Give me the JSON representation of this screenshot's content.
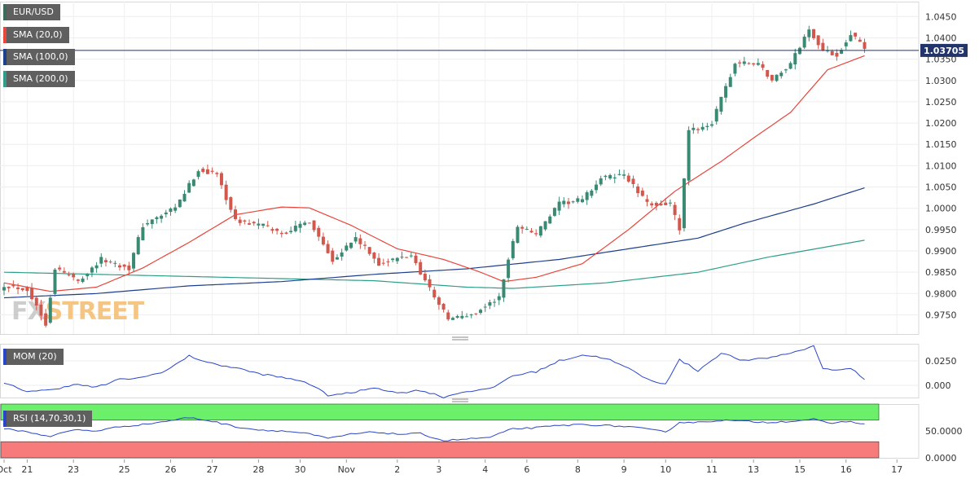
{
  "legend": {
    "symbol": "EUR/USD",
    "sma20": "SMA (20,0)",
    "sma100": "SMA (100,0)",
    "sma200": "SMA (200,0)",
    "mom": "MOM (20)",
    "rsi": "RSI (14,70,30,1)"
  },
  "watermark": {
    "part1": "FX",
    "part2": "STREET"
  },
  "colors": {
    "candle_up": "#3a8a73",
    "candle_down": "#d2584e",
    "sma20": "#e8463c",
    "sma100": "#1e3f8a",
    "sma200": "#2e9e8a",
    "mom_line": "#2a46c8",
    "rsi_line": "#2a46c8",
    "rsi_overbought": "#6cf06c",
    "rsi_oversold": "#f87b7b",
    "price_line": "#22356b"
  },
  "chart_data": {
    "type": "candlestick",
    "current_price": {
      "value": 1.03705,
      "label": "1.03705"
    },
    "price_axis": {
      "ylim": [
        0.9705,
        1.0485
      ],
      "ticks": [
        "0.9750",
        "0.9800",
        "0.9850",
        "0.9900",
        "0.9950",
        "1.0000",
        "1.0050",
        "1.0100",
        "1.0150",
        "1.0200",
        "1.0250",
        "1.0300",
        "1.0350",
        "1.0400",
        "1.0450"
      ]
    },
    "x_axis": {
      "count": 187,
      "labels": [
        {
          "i": 0,
          "label": "Oct"
        },
        {
          "i": 5,
          "label": "21"
        },
        {
          "i": 15,
          "label": "23"
        },
        {
          "i": 26,
          "label": "25"
        },
        {
          "i": 36,
          "label": "26"
        },
        {
          "i": 45,
          "label": "27"
        },
        {
          "i": 55,
          "label": "28"
        },
        {
          "i": 64,
          "label": "30"
        },
        {
          "i": 74,
          "label": "Nov"
        },
        {
          "i": 85,
          "label": "2"
        },
        {
          "i": 94,
          "label": "3"
        },
        {
          "i": 104,
          "label": "4"
        },
        {
          "i": 113,
          "label": "6"
        },
        {
          "i": 124,
          "label": "8"
        },
        {
          "i": 134,
          "label": "9"
        },
        {
          "i": 143,
          "label": "10"
        },
        {
          "i": 153,
          "label": "11"
        },
        {
          "i": 162,
          "label": "13"
        },
        {
          "i": 172,
          "label": "15"
        },
        {
          "i": 182,
          "label": "16"
        },
        {
          "i": 193,
          "label": "17"
        }
      ]
    },
    "price_anchors": [
      {
        "i": 0,
        "p": 0.982
      },
      {
        "i": 5,
        "p": 0.981
      },
      {
        "i": 9,
        "p": 0.973
      },
      {
        "i": 11,
        "p": 0.986
      },
      {
        "i": 16,
        "p": 0.983
      },
      {
        "i": 21,
        "p": 0.988
      },
      {
        "i": 27,
        "p": 0.986
      },
      {
        "i": 30,
        "p": 0.996
      },
      {
        "i": 37,
        "p": 1.0
      },
      {
        "i": 42,
        "p": 1.009
      },
      {
        "i": 46,
        "p": 1.008
      },
      {
        "i": 50,
        "p": 0.997
      },
      {
        "i": 56,
        "p": 0.996
      },
      {
        "i": 60,
        "p": 0.994
      },
      {
        "i": 66,
        "p": 0.997
      },
      {
        "i": 71,
        "p": 0.988
      },
      {
        "i": 76,
        "p": 0.993
      },
      {
        "i": 81,
        "p": 0.987
      },
      {
        "i": 88,
        "p": 0.989
      },
      {
        "i": 91,
        "p": 0.983
      },
      {
        "i": 96,
        "p": 0.974
      },
      {
        "i": 101,
        "p": 0.975
      },
      {
        "i": 107,
        "p": 0.979
      },
      {
        "i": 109,
        "p": 0.988
      },
      {
        "i": 111,
        "p": 0.996
      },
      {
        "i": 115,
        "p": 0.994
      },
      {
        "i": 120,
        "p": 1.001
      },
      {
        "i": 125,
        "p": 1.002
      },
      {
        "i": 129,
        "p": 1.007
      },
      {
        "i": 134,
        "p": 1.008
      },
      {
        "i": 139,
        "p": 1.001
      },
      {
        "i": 144,
        "p": 1.001
      },
      {
        "i": 146,
        "p": 0.995
      },
      {
        "i": 148,
        "p": 1.018
      },
      {
        "i": 153,
        "p": 1.02
      },
      {
        "i": 158,
        "p": 1.034
      },
      {
        "i": 163,
        "p": 1.034
      },
      {
        "i": 166,
        "p": 1.03
      },
      {
        "i": 170,
        "p": 1.034
      },
      {
        "i": 174,
        "p": 1.042
      },
      {
        "i": 177,
        "p": 1.037
      },
      {
        "i": 180,
        "p": 1.036
      },
      {
        "i": 183,
        "p": 1.041
      },
      {
        "i": 186,
        "p": 1.0375
      }
    ],
    "sma20_anchors": [
      {
        "i": 0,
        "p": 0.9825
      },
      {
        "i": 10,
        "p": 0.9805
      },
      {
        "i": 20,
        "p": 0.9815
      },
      {
        "i": 30,
        "p": 0.986
      },
      {
        "i": 40,
        "p": 0.992
      },
      {
        "i": 50,
        "p": 0.9985
      },
      {
        "i": 60,
        "p": 1.0003
      },
      {
        "i": 66,
        "p": 1.0001
      },
      {
        "i": 75,
        "p": 0.996
      },
      {
        "i": 85,
        "p": 0.9905
      },
      {
        "i": 95,
        "p": 0.988
      },
      {
        "i": 103,
        "p": 0.985
      },
      {
        "i": 108,
        "p": 0.9828
      },
      {
        "i": 115,
        "p": 0.9838
      },
      {
        "i": 125,
        "p": 0.987
      },
      {
        "i": 135,
        "p": 0.995
      },
      {
        "i": 145,
        "p": 1.004
      },
      {
        "i": 155,
        "p": 1.011
      },
      {
        "i": 162,
        "p": 1.0165
      },
      {
        "i": 170,
        "p": 1.0225
      },
      {
        "i": 178,
        "p": 1.0325
      },
      {
        "i": 186,
        "p": 1.0358
      }
    ],
    "sma100_anchors": [
      {
        "i": 0,
        "p": 0.979
      },
      {
        "i": 20,
        "p": 0.98
      },
      {
        "i": 40,
        "p": 0.9818
      },
      {
        "i": 60,
        "p": 0.9828
      },
      {
        "i": 80,
        "p": 0.9845
      },
      {
        "i": 100,
        "p": 0.9858
      },
      {
        "i": 120,
        "p": 0.988
      },
      {
        "i": 135,
        "p": 0.9905
      },
      {
        "i": 150,
        "p": 0.993
      },
      {
        "i": 160,
        "p": 0.9965
      },
      {
        "i": 175,
        "p": 1.001
      },
      {
        "i": 186,
        "p": 1.0048
      }
    ],
    "sma200_anchors": [
      {
        "i": 0,
        "p": 0.985
      },
      {
        "i": 40,
        "p": 0.984
      },
      {
        "i": 80,
        "p": 0.983
      },
      {
        "i": 100,
        "p": 0.9815
      },
      {
        "i": 110,
        "p": 0.9812
      },
      {
        "i": 130,
        "p": 0.9825
      },
      {
        "i": 150,
        "p": 0.985
      },
      {
        "i": 165,
        "p": 0.9885
      },
      {
        "i": 186,
        "p": 0.9925
      }
    ],
    "mom": {
      "ylim": [
        -0.0125,
        0.0425
      ],
      "ticks": [
        "0.000",
        "0.0250"
      ],
      "anchors": [
        {
          "i": 0,
          "v": 0.002
        },
        {
          "i": 5,
          "v": -0.006
        },
        {
          "i": 10,
          "v": -0.005
        },
        {
          "i": 15,
          "v": 0.001
        },
        {
          "i": 20,
          "v": -0.002
        },
        {
          "i": 25,
          "v": 0.006
        },
        {
          "i": 30,
          "v": 0.008
        },
        {
          "i": 35,
          "v": 0.015
        },
        {
          "i": 40,
          "v": 0.03
        },
        {
          "i": 45,
          "v": 0.022
        },
        {
          "i": 50,
          "v": 0.018
        },
        {
          "i": 55,
          "v": 0.012
        },
        {
          "i": 60,
          "v": 0.008
        },
        {
          "i": 65,
          "v": 0.004
        },
        {
          "i": 70,
          "v": -0.01
        },
        {
          "i": 75,
          "v": -0.008
        },
        {
          "i": 80,
          "v": -0.002
        },
        {
          "i": 85,
          "v": -0.008
        },
        {
          "i": 90,
          "v": -0.005
        },
        {
          "i": 95,
          "v": -0.012
        },
        {
          "i": 100,
          "v": -0.006
        },
        {
          "i": 105,
          "v": -0.004
        },
        {
          "i": 110,
          "v": 0.01
        },
        {
          "i": 115,
          "v": 0.014
        },
        {
          "i": 120,
          "v": 0.025
        },
        {
          "i": 125,
          "v": 0.031
        },
        {
          "i": 130,
          "v": 0.028
        },
        {
          "i": 135,
          "v": 0.017
        },
        {
          "i": 140,
          "v": 0.004
        },
        {
          "i": 143,
          "v": 0.002
        },
        {
          "i": 146,
          "v": 0.026
        },
        {
          "i": 150,
          "v": 0.015
        },
        {
          "i": 155,
          "v": 0.033
        },
        {
          "i": 160,
          "v": 0.025
        },
        {
          "i": 165,
          "v": 0.028
        },
        {
          "i": 170,
          "v": 0.033
        },
        {
          "i": 175,
          "v": 0.04
        },
        {
          "i": 177,
          "v": 0.018
        },
        {
          "i": 180,
          "v": 0.015
        },
        {
          "i": 183,
          "v": 0.018
        },
        {
          "i": 186,
          "v": 0.005
        }
      ]
    },
    "rsi": {
      "ylim": [
        0,
        100
      ],
      "ticks": [
        "0.0000",
        "50.0000"
      ],
      "overbought": 70,
      "oversold": 30,
      "anchors": [
        {
          "i": 0,
          "v": 55
        },
        {
          "i": 5,
          "v": 48
        },
        {
          "i": 10,
          "v": 40
        },
        {
          "i": 15,
          "v": 52
        },
        {
          "i": 20,
          "v": 50
        },
        {
          "i": 25,
          "v": 58
        },
        {
          "i": 30,
          "v": 62
        },
        {
          "i": 35,
          "v": 68
        },
        {
          "i": 40,
          "v": 75
        },
        {
          "i": 45,
          "v": 68
        },
        {
          "i": 50,
          "v": 58
        },
        {
          "i": 55,
          "v": 52
        },
        {
          "i": 60,
          "v": 50
        },
        {
          "i": 65,
          "v": 46
        },
        {
          "i": 70,
          "v": 36
        },
        {
          "i": 75,
          "v": 44
        },
        {
          "i": 80,
          "v": 48
        },
        {
          "i": 85,
          "v": 44
        },
        {
          "i": 90,
          "v": 45
        },
        {
          "i": 95,
          "v": 32
        },
        {
          "i": 100,
          "v": 35
        },
        {
          "i": 105,
          "v": 38
        },
        {
          "i": 110,
          "v": 54
        },
        {
          "i": 115,
          "v": 56
        },
        {
          "i": 120,
          "v": 60
        },
        {
          "i": 125,
          "v": 62
        },
        {
          "i": 130,
          "v": 60
        },
        {
          "i": 135,
          "v": 58
        },
        {
          "i": 140,
          "v": 52
        },
        {
          "i": 143,
          "v": 48
        },
        {
          "i": 146,
          "v": 66
        },
        {
          "i": 150,
          "v": 66
        },
        {
          "i": 155,
          "v": 70
        },
        {
          "i": 160,
          "v": 68
        },
        {
          "i": 165,
          "v": 66
        },
        {
          "i": 170,
          "v": 68
        },
        {
          "i": 175,
          "v": 72
        },
        {
          "i": 178,
          "v": 64
        },
        {
          "i": 183,
          "v": 68
        },
        {
          "i": 186,
          "v": 62
        }
      ]
    }
  }
}
